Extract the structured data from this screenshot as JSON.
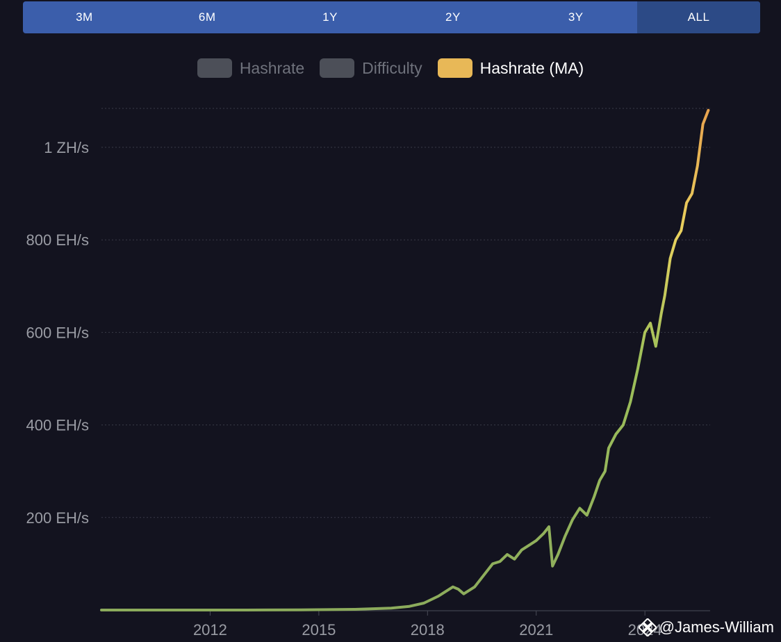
{
  "range_buttons": [
    {
      "label": "3M",
      "active": false
    },
    {
      "label": "6M",
      "active": false
    },
    {
      "label": "1Y",
      "active": false
    },
    {
      "label": "2Y",
      "active": false
    },
    {
      "label": "3Y",
      "active": false
    },
    {
      "label": "ALL",
      "active": true
    }
  ],
  "legend": [
    {
      "label": "Hashrate",
      "color": "#4c4f58",
      "on": false
    },
    {
      "label": "Difficulty",
      "color": "#4c4f58",
      "on": false
    },
    {
      "label": "Hashrate (MA)",
      "color": "#e8b857",
      "on": true
    }
  ],
  "watermark": {
    "text": "@James-William",
    "icon": "binance-logo-icon"
  },
  "chart_data": {
    "type": "line",
    "title": "",
    "xlabel": "",
    "ylabel": "",
    "x_ticks": [
      2012,
      2015,
      2018,
      2021,
      2024
    ],
    "y_ticks": [
      {
        "value": 200,
        "label": "200 EH/s"
      },
      {
        "value": 400,
        "label": "400 EH/s"
      },
      {
        "value": 600,
        "label": "600 EH/s"
      },
      {
        "value": 800,
        "label": "800 EH/s"
      },
      {
        "value": 1000,
        "label": "1 ZH/s"
      }
    ],
    "xlim": [
      2009.0,
      2025.8
    ],
    "ylim": [
      0,
      1000
    ],
    "grid": true,
    "legend_position": "top-center",
    "gradient": [
      "#8cab5c",
      "#9ec05a",
      "#e8d15e",
      "#e8a24e"
    ],
    "series": [
      {
        "name": "Hashrate (MA)",
        "x": [
          2009.0,
          2011.0,
          2013.0,
          2014.5,
          2016.0,
          2017.0,
          2017.5,
          2017.9,
          2018.3,
          2018.7,
          2018.85,
          2019.0,
          2019.3,
          2019.6,
          2019.8,
          2020.0,
          2020.2,
          2020.4,
          2020.6,
          2020.8,
          2021.0,
          2021.2,
          2021.35,
          2021.45,
          2021.6,
          2021.8,
          2022.0,
          2022.2,
          2022.4,
          2022.6,
          2022.75,
          2022.9,
          2023.0,
          2023.2,
          2023.4,
          2023.6,
          2023.8,
          2024.0,
          2024.15,
          2024.3,
          2024.45,
          2024.55,
          2024.7,
          2024.85,
          2025.0,
          2025.15,
          2025.3,
          2025.45,
          2025.6,
          2025.75
        ],
        "values": [
          0,
          0,
          0,
          0.5,
          1.5,
          4,
          8,
          15,
          30,
          50,
          45,
          35,
          50,
          80,
          100,
          105,
          120,
          110,
          130,
          140,
          150,
          165,
          180,
          95,
          120,
          160,
          195,
          220,
          205,
          245,
          280,
          300,
          350,
          380,
          400,
          450,
          520,
          600,
          620,
          570,
          640,
          680,
          760,
          800,
          820,
          880,
          900,
          960,
          1050,
          1080
        ]
      }
    ]
  }
}
